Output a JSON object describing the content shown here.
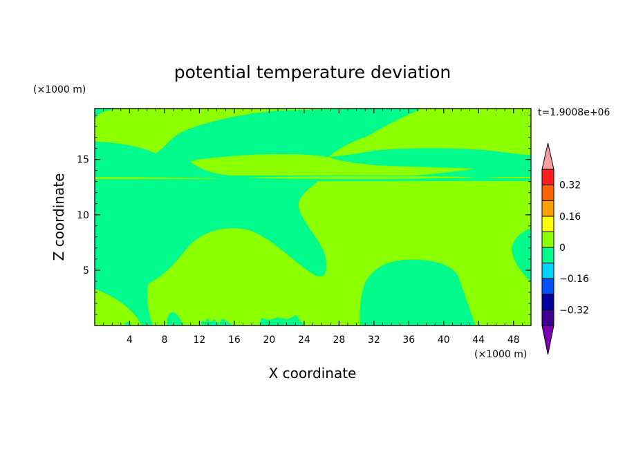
{
  "chart_data": {
    "type": "contour",
    "title": "potential temperature deviation",
    "xlabel": "X coordinate",
    "ylabel": "Z coordinate",
    "x_unit": "(×1000 m)",
    "z_unit": "(×1000 m)",
    "time_label": "t=1.9008e+06",
    "xlim": [
      0,
      50
    ],
    "zlim": [
      0,
      19.6
    ],
    "x_ticks": [
      4,
      8,
      12,
      16,
      20,
      24,
      28,
      32,
      36,
      40,
      44,
      48
    ],
    "z_ticks": [
      5,
      10,
      15
    ],
    "colorbar": {
      "levels": [
        -0.4,
        -0.32,
        -0.24,
        -0.16,
        -0.08,
        0,
        0.08,
        0.16,
        0.24,
        0.32,
        0.4
      ],
      "labeled_levels": [
        "0.32",
        "0.16",
        "0",
        "-0.16",
        "-0.32"
      ],
      "bands": [
        {
          "range": "< -0.4",
          "color": "#7a00b4"
        },
        {
          "range": "-0.4 – -0.32",
          "color": "#3c0095"
        },
        {
          "range": "-0.32 – -0.24",
          "color": "#0000a0"
        },
        {
          "range": "-0.24 – -0.16",
          "color": "#0050ff"
        },
        {
          "range": "-0.16 – -0.08",
          "color": "#00d2ff"
        },
        {
          "range": "-0.08 – 0",
          "color": "#00fa8c"
        },
        {
          "range": "0 – 0.08",
          "color": "#8cff00"
        },
        {
          "range": "0.08 – 0.16",
          "color": "#ffff00"
        },
        {
          "range": "0.16 – 0.24",
          "color": "#ffa000"
        },
        {
          "range": "0.24 – 0.32",
          "color": "#ff6400"
        },
        {
          "range": "0.32 – 0.4",
          "color": "#ff1e1e"
        },
        {
          "range": "> 0.4",
          "color": "#f5a0a0"
        }
      ]
    },
    "field_colors": {
      "negative": "#00fa8c",
      "positive": "#8cff00"
    }
  }
}
